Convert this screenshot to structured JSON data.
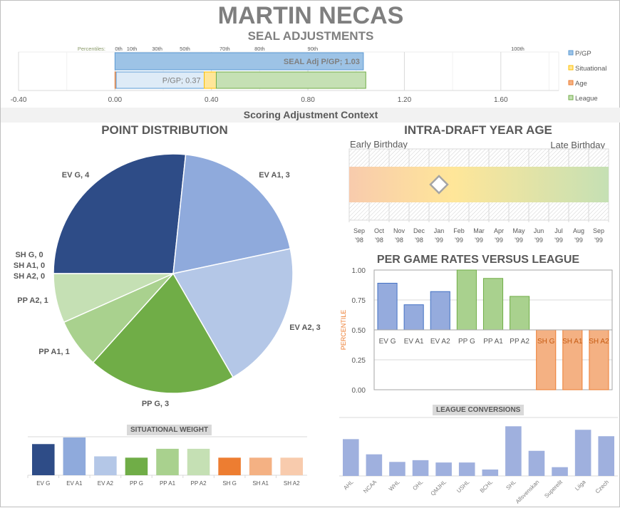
{
  "header": {
    "title": "MARTIN NECAS",
    "subtitle": "SEAL ADJUSTMENTS"
  },
  "context_band": "Scoring Adjustment Context",
  "colors": {
    "pgp": "#9dc3e6",
    "situational": "#ffe699",
    "age": "#f4b183",
    "league": "#c5e0b4",
    "ev_g": "#2e4c87",
    "ev_a1": "#8faadc",
    "ev_a2": "#b4c7e7",
    "pp_g": "#70ad47",
    "pp_a1": "#a9d18e",
    "pp_a2": "#c5e0b4",
    "sh_g": "#ed7d31",
    "sh_a1": "#f4b183",
    "sh_a2": "#f8cbad"
  },
  "chart_data": [
    {
      "id": "seal",
      "type": "bar",
      "orientation": "horizontal",
      "stacked": true,
      "x_ticks": [
        "-0.40",
        "0.00",
        "0.40",
        "0.80",
        "1.20",
        "1.60"
      ],
      "xlim": [
        -0.4,
        1.84
      ],
      "percentile_label": "Percentiles:",
      "percentiles": [
        {
          "label": "0th",
          "value": 0
        },
        {
          "label": "10th",
          "value": 0.07
        },
        {
          "label": "30th",
          "value": 0.175
        },
        {
          "label": "50th",
          "value": 0.29
        },
        {
          "label": "70th",
          "value": 0.455
        },
        {
          "label": "80th",
          "value": 0.6
        },
        {
          "label": "90th",
          "value": 0.82
        },
        {
          "label": "100th",
          "value": 1.67
        }
      ],
      "legend": [
        "P/GP",
        "Situational",
        "Age",
        "League"
      ],
      "bars": [
        {
          "name": "SEAL Adj P/GP",
          "segments": [
            {
              "series": "P/GP",
              "value": 1.03
            }
          ],
          "label": "SEAL Adj P/GP; 1.03"
        },
        {
          "name": "P/GP",
          "segments": [
            {
              "series": "Age",
              "value": 0.005
            },
            {
              "series": "P/GP",
              "value": 0.365
            },
            {
              "series": "Situational",
              "value": 0.05
            },
            {
              "series": "League",
              "value": 0.62
            }
          ],
          "label": "P/GP; 0.37"
        }
      ]
    },
    {
      "id": "points",
      "type": "pie",
      "title": "POINT DISTRIBUTION",
      "slices": [
        {
          "label": "EV G",
          "value": 4
        },
        {
          "label": "EV A1",
          "value": 3
        },
        {
          "label": "EV A2",
          "value": 3
        },
        {
          "label": "PP G",
          "value": 3
        },
        {
          "label": "PP A1",
          "value": 1
        },
        {
          "label": "PP A2",
          "value": 1
        },
        {
          "label": "SH G",
          "value": 0
        },
        {
          "label": "SH A1",
          "value": 0
        },
        {
          "label": "SH A2",
          "value": 0
        }
      ]
    },
    {
      "id": "situational",
      "type": "bar",
      "title": "SITUATIONAL  WEIGHT",
      "categories": [
        "EV G",
        "EV A1",
        "EV A2",
        "PP G",
        "PP A1",
        "PP A2",
        "SH G",
        "SH A1",
        "SH A2"
      ],
      "values": [
        1.65,
        2.0,
        1.0,
        0.93,
        1.4,
        1.4,
        0.93,
        0.93,
        0.93
      ],
      "ylim": [
        0,
        2
      ]
    },
    {
      "id": "age",
      "type": "scale",
      "title": "INTRA-DRAFT YEAR AGE",
      "left_label": "Early Birthday",
      "right_label": "Late Birthday",
      "months": [
        [
          "Sep",
          "'98"
        ],
        [
          "Oct",
          "'98"
        ],
        [
          "Nov",
          "'98"
        ],
        [
          "Dec",
          "'98"
        ],
        [
          "Jan",
          "'99"
        ],
        [
          "Feb",
          "'99"
        ],
        [
          "Mar",
          "'99"
        ],
        [
          "Apr",
          "'99"
        ],
        [
          "May",
          "'99"
        ],
        [
          "Jun",
          "'99"
        ],
        [
          "Jul",
          "'99"
        ],
        [
          "Aug",
          "'99"
        ],
        [
          "Sep",
          "'99"
        ]
      ],
      "marker_month_index": 4
    },
    {
      "id": "pergame",
      "type": "bar",
      "title": "PER GAME RATES VERSUS  LEAGUE",
      "ylabel": "PERCENTILE",
      "y_ticks": [
        "0.00",
        "0.25",
        "0.50",
        "0.75",
        "1.00"
      ],
      "ylim": [
        0,
        1
      ],
      "baseline": 0.5,
      "categories": [
        "EV G",
        "EV A1",
        "EV A2",
        "PP G",
        "PP A1",
        "PP A2",
        "SH G",
        "SH A1",
        "SH A2"
      ],
      "values": [
        0.89,
        0.71,
        0.82,
        1.0,
        0.93,
        0.78,
        0,
        0,
        0
      ]
    },
    {
      "id": "league",
      "type": "bar",
      "title": "LEAGUE CONVERSIONS",
      "categories": [
        "AHL",
        "NCAA",
        "WHL",
        "OHL",
        "QMJHL",
        "USHL",
        "BCHL",
        "SHL",
        "Allsvenskan",
        "Superelit",
        "Liiga",
        "Czech"
      ],
      "values": [
        0.63,
        0.37,
        0.24,
        0.27,
        0.23,
        0.23,
        0.11,
        0.85,
        0.43,
        0.15,
        0.79,
        0.68
      ],
      "ylim": [
        0,
        1
      ]
    }
  ]
}
